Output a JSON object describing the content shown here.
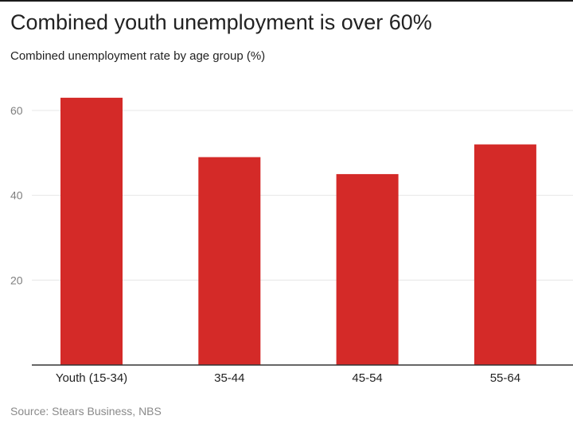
{
  "chart_data": {
    "type": "bar",
    "title": "Combined youth unemployment is over 60%",
    "subtitle": "Combined unemployment rate by age group (%)",
    "categories": [
      "Youth (15-34)",
      "35-44",
      "45-54",
      "55-64"
    ],
    "values": [
      63,
      49,
      45,
      52
    ],
    "xlabel": "",
    "ylabel": "",
    "ylim": [
      0,
      60
    ],
    "yticks": [
      20,
      40,
      60
    ],
    "grid": true,
    "legend": "none",
    "source": "Source: Stears Business, NBS"
  },
  "colors": {
    "bar": "#d42a28",
    "gridline": "#e6e6e6",
    "baseline": "#333333",
    "tick_label": "#7f7f7f",
    "category_label": "#222222",
    "source_text": "#8a8a8a"
  }
}
